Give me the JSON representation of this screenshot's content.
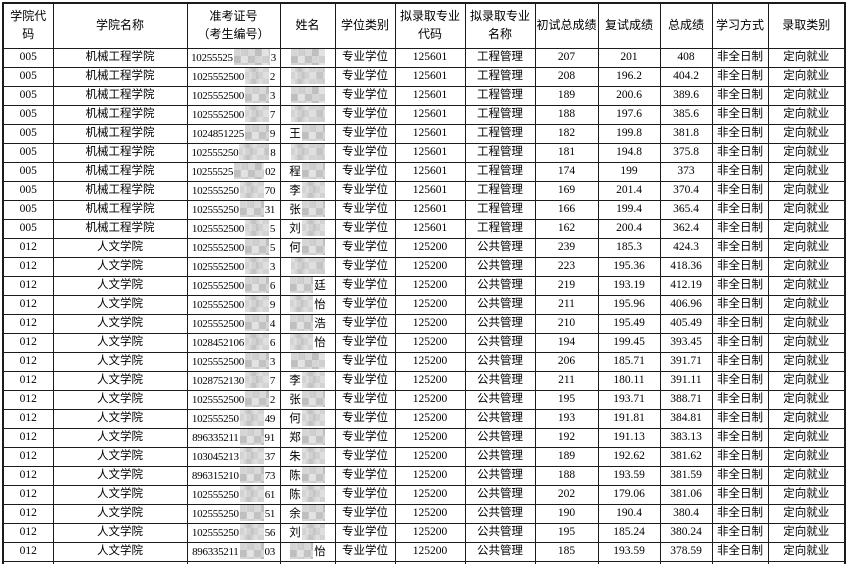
{
  "colors": {
    "background": "#ffffff",
    "border": "#1b1b1b",
    "text": "#000000",
    "censor_light": "#e0e0e0",
    "censor_dark": "#c9c9c9"
  },
  "table": {
    "headers": [
      "学院代码",
      "学院名称",
      "准考证号\n（考生编号）",
      "姓名",
      "学位类别",
      "拟录取专业\n代码",
      "拟录取专业\n名称",
      "初试总成绩",
      "复试成绩",
      "总成绩",
      "学习方式",
      "录取类别"
    ],
    "rows": [
      {
        "college_code": "005",
        "college_name": "机械工程学院",
        "exam_prefix": "10255525",
        "exam_suffix": "3",
        "name_prefix": "",
        "name_suffix": "",
        "degree": "专业学位",
        "major_code": "125601",
        "major_name": "工程管理",
        "initial_score": "207",
        "retest_score": "201",
        "total_score": "408",
        "study_mode": "非全日制",
        "admission_category": "定向就业"
      },
      {
        "college_code": "005",
        "college_name": "机械工程学院",
        "exam_prefix": "1025552500",
        "exam_suffix": "2",
        "name_prefix": "",
        "name_suffix": "",
        "degree": "专业学位",
        "major_code": "125601",
        "major_name": "工程管理",
        "initial_score": "208",
        "retest_score": "196.2",
        "total_score": "404.2",
        "study_mode": "非全日制",
        "admission_category": "定向就业"
      },
      {
        "college_code": "005",
        "college_name": "机械工程学院",
        "exam_prefix": "1025552500",
        "exam_suffix": "3",
        "name_prefix": "",
        "name_suffix": "",
        "degree": "专业学位",
        "major_code": "125601",
        "major_name": "工程管理",
        "initial_score": "189",
        "retest_score": "200.6",
        "total_score": "389.6",
        "study_mode": "非全日制",
        "admission_category": "定向就业"
      },
      {
        "college_code": "005",
        "college_name": "机械工程学院",
        "exam_prefix": "1025552500",
        "exam_suffix": "7",
        "name_prefix": "",
        "name_suffix": "",
        "degree": "专业学位",
        "major_code": "125601",
        "major_name": "工程管理",
        "initial_score": "188",
        "retest_score": "197.6",
        "total_score": "385.6",
        "study_mode": "非全日制",
        "admission_category": "定向就业"
      },
      {
        "college_code": "005",
        "college_name": "机械工程学院",
        "exam_prefix": "1024851225",
        "exam_suffix": "9",
        "name_prefix": "王",
        "name_suffix": "",
        "degree": "专业学位",
        "major_code": "125601",
        "major_name": "工程管理",
        "initial_score": "182",
        "retest_score": "199.8",
        "total_score": "381.8",
        "study_mode": "非全日制",
        "admission_category": "定向就业"
      },
      {
        "college_code": "005",
        "college_name": "机械工程学院",
        "exam_prefix": "102555250",
        "exam_suffix": "8",
        "name_prefix": "",
        "name_suffix": "",
        "degree": "专业学位",
        "major_code": "125601",
        "major_name": "工程管理",
        "initial_score": "181",
        "retest_score": "194.8",
        "total_score": "375.8",
        "study_mode": "非全日制",
        "admission_category": "定向就业"
      },
      {
        "college_code": "005",
        "college_name": "机械工程学院",
        "exam_prefix": "10255525",
        "exam_suffix": "02",
        "name_prefix": "程",
        "name_suffix": "",
        "degree": "专业学位",
        "major_code": "125601",
        "major_name": "工程管理",
        "initial_score": "174",
        "retest_score": "199",
        "total_score": "373",
        "study_mode": "非全日制",
        "admission_category": "定向就业"
      },
      {
        "college_code": "005",
        "college_name": "机械工程学院",
        "exam_prefix": "102555250",
        "exam_suffix": "70",
        "name_prefix": "李",
        "name_suffix": "",
        "degree": "专业学位",
        "major_code": "125601",
        "major_name": "工程管理",
        "initial_score": "169",
        "retest_score": "201.4",
        "total_score": "370.4",
        "study_mode": "非全日制",
        "admission_category": "定向就业"
      },
      {
        "college_code": "005",
        "college_name": "机械工程学院",
        "exam_prefix": "102555250",
        "exam_suffix": "31",
        "name_prefix": "张",
        "name_suffix": "",
        "degree": "专业学位",
        "major_code": "125601",
        "major_name": "工程管理",
        "initial_score": "166",
        "retest_score": "199.4",
        "total_score": "365.4",
        "study_mode": "非全日制",
        "admission_category": "定向就业"
      },
      {
        "college_code": "005",
        "college_name": "机械工程学院",
        "exam_prefix": "1025552500",
        "exam_suffix": "5",
        "name_prefix": "刘",
        "name_suffix": "",
        "degree": "专业学位",
        "major_code": "125601",
        "major_name": "工程管理",
        "initial_score": "162",
        "retest_score": "200.4",
        "total_score": "362.4",
        "study_mode": "非全日制",
        "admission_category": "定向就业"
      },
      {
        "college_code": "012",
        "college_name": "人文学院",
        "exam_prefix": "1025552500",
        "exam_suffix": "5",
        "name_prefix": "何",
        "name_suffix": "",
        "degree": "专业学位",
        "major_code": "125200",
        "major_name": "公共管理",
        "initial_score": "239",
        "retest_score": "185.3",
        "total_score": "424.3",
        "study_mode": "非全日制",
        "admission_category": "定向就业"
      },
      {
        "college_code": "012",
        "college_name": "人文学院",
        "exam_prefix": "1025552500",
        "exam_suffix": "3",
        "name_prefix": "",
        "name_suffix": "",
        "degree": "专业学位",
        "major_code": "125200",
        "major_name": "公共管理",
        "initial_score": "223",
        "retest_score": "195.36",
        "total_score": "418.36",
        "study_mode": "非全日制",
        "admission_category": "定向就业"
      },
      {
        "college_code": "012",
        "college_name": "人文学院",
        "exam_prefix": "1025552500",
        "exam_suffix": "6",
        "name_prefix": "",
        "name_suffix": "廷",
        "degree": "专业学位",
        "major_code": "125200",
        "major_name": "公共管理",
        "initial_score": "219",
        "retest_score": "193.19",
        "total_score": "412.19",
        "study_mode": "非全日制",
        "admission_category": "定向就业"
      },
      {
        "college_code": "012",
        "college_name": "人文学院",
        "exam_prefix": "1025552500",
        "exam_suffix": "9",
        "name_prefix": "",
        "name_suffix": "怡",
        "degree": "专业学位",
        "major_code": "125200",
        "major_name": "公共管理",
        "initial_score": "211",
        "retest_score": "195.96",
        "total_score": "406.96",
        "study_mode": "非全日制",
        "admission_category": "定向就业"
      },
      {
        "college_code": "012",
        "college_name": "人文学院",
        "exam_prefix": "1025552500",
        "exam_suffix": "4",
        "name_prefix": "",
        "name_suffix": "浩",
        "degree": "专业学位",
        "major_code": "125200",
        "major_name": "公共管理",
        "initial_score": "210",
        "retest_score": "195.49",
        "total_score": "405.49",
        "study_mode": "非全日制",
        "admission_category": "定向就业"
      },
      {
        "college_code": "012",
        "college_name": "人文学院",
        "exam_prefix": "1028452106",
        "exam_suffix": "6",
        "name_prefix": "",
        "name_suffix": "怡",
        "degree": "专业学位",
        "major_code": "125200",
        "major_name": "公共管理",
        "initial_score": "194",
        "retest_score": "199.45",
        "total_score": "393.45",
        "study_mode": "非全日制",
        "admission_category": "定向就业"
      },
      {
        "college_code": "012",
        "college_name": "人文学院",
        "exam_prefix": "1025552500",
        "exam_suffix": "3",
        "name_prefix": "",
        "name_suffix": "",
        "degree": "专业学位",
        "major_code": "125200",
        "major_name": "公共管理",
        "initial_score": "206",
        "retest_score": "185.71",
        "total_score": "391.71",
        "study_mode": "非全日制",
        "admission_category": "定向就业"
      },
      {
        "college_code": "012",
        "college_name": "人文学院",
        "exam_prefix": "1028752130",
        "exam_suffix": "7",
        "name_prefix": "李",
        "name_suffix": "",
        "degree": "专业学位",
        "major_code": "125200",
        "major_name": "公共管理",
        "initial_score": "211",
        "retest_score": "180.11",
        "total_score": "391.11",
        "study_mode": "非全日制",
        "admission_category": "定向就业"
      },
      {
        "college_code": "012",
        "college_name": "人文学院",
        "exam_prefix": "1025552500",
        "exam_suffix": "2",
        "name_prefix": "张",
        "name_suffix": "",
        "degree": "专业学位",
        "major_code": "125200",
        "major_name": "公共管理",
        "initial_score": "195",
        "retest_score": "193.71",
        "total_score": "388.71",
        "study_mode": "非全日制",
        "admission_category": "定向就业"
      },
      {
        "college_code": "012",
        "college_name": "人文学院",
        "exam_prefix": "102555250",
        "exam_suffix": "49",
        "name_prefix": "何",
        "name_suffix": "",
        "degree": "专业学位",
        "major_code": "125200",
        "major_name": "公共管理",
        "initial_score": "193",
        "retest_score": "191.81",
        "total_score": "384.81",
        "study_mode": "非全日制",
        "admission_category": "定向就业"
      },
      {
        "college_code": "012",
        "college_name": "人文学院",
        "exam_prefix": "896335211",
        "exam_suffix": "91",
        "name_prefix": "郑",
        "name_suffix": "",
        "degree": "专业学位",
        "major_code": "125200",
        "major_name": "公共管理",
        "initial_score": "192",
        "retest_score": "191.13",
        "total_score": "383.13",
        "study_mode": "非全日制",
        "admission_category": "定向就业"
      },
      {
        "college_code": "012",
        "college_name": "人文学院",
        "exam_prefix": "103045213",
        "exam_suffix": "37",
        "name_prefix": "朱",
        "name_suffix": "",
        "degree": "专业学位",
        "major_code": "125200",
        "major_name": "公共管理",
        "initial_score": "189",
        "retest_score": "192.62",
        "total_score": "381.62",
        "study_mode": "非全日制",
        "admission_category": "定向就业"
      },
      {
        "college_code": "012",
        "college_name": "人文学院",
        "exam_prefix": "896315210",
        "exam_suffix": "73",
        "name_prefix": "陈",
        "name_suffix": "",
        "degree": "专业学位",
        "major_code": "125200",
        "major_name": "公共管理",
        "initial_score": "188",
        "retest_score": "193.59",
        "total_score": "381.59",
        "study_mode": "非全日制",
        "admission_category": "定向就业"
      },
      {
        "college_code": "012",
        "college_name": "人文学院",
        "exam_prefix": "102555250",
        "exam_suffix": "61",
        "name_prefix": "陈",
        "name_suffix": "",
        "degree": "专业学位",
        "major_code": "125200",
        "major_name": "公共管理",
        "initial_score": "202",
        "retest_score": "179.06",
        "total_score": "381.06",
        "study_mode": "非全日制",
        "admission_category": "定向就业"
      },
      {
        "college_code": "012",
        "college_name": "人文学院",
        "exam_prefix": "102555250",
        "exam_suffix": "51",
        "name_prefix": "余",
        "name_suffix": "",
        "degree": "专业学位",
        "major_code": "125200",
        "major_name": "公共管理",
        "initial_score": "190",
        "retest_score": "190.4",
        "total_score": "380.4",
        "study_mode": "非全日制",
        "admission_category": "定向就业"
      },
      {
        "college_code": "012",
        "college_name": "人文学院",
        "exam_prefix": "102555250",
        "exam_suffix": "56",
        "name_prefix": "刘",
        "name_suffix": "",
        "degree": "专业学位",
        "major_code": "125200",
        "major_name": "公共管理",
        "initial_score": "195",
        "retest_score": "185.24",
        "total_score": "380.24",
        "study_mode": "非全日制",
        "admission_category": "定向就业"
      },
      {
        "college_code": "012",
        "college_name": "人文学院",
        "exam_prefix": "896335211",
        "exam_suffix": "03",
        "name_prefix": "",
        "name_suffix": "怡",
        "degree": "专业学位",
        "major_code": "125200",
        "major_name": "公共管理",
        "initial_score": "185",
        "retest_score": "193.59",
        "total_score": "378.59",
        "study_mode": "非全日制",
        "admission_category": "定向就业"
      }
    ]
  }
}
